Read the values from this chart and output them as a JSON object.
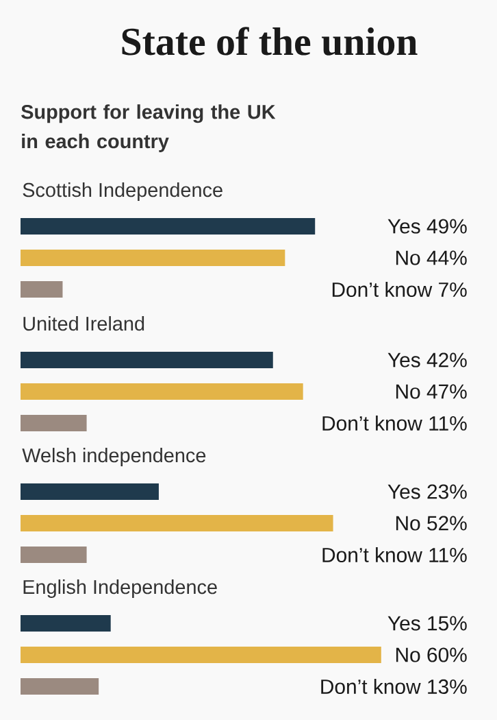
{
  "chart_data": [
    {
      "type": "bar",
      "orientation": "horizontal",
      "title": "State of the union",
      "subtitle": "Support for leaving the UK in each country",
      "xlabel": "Scottish Independence",
      "categories": [
        null,
        null,
        null
      ],
      "values": [
        49,
        44,
        7
      ],
      "value_labels": [
        "Yes 49%",
        "No 44%",
        "Don’t know 7%"
      ],
      "colors": [
        "#1f3a4d",
        "#e3b448",
        "#9b8a80"
      ]
    },
    {
      "type": "bar",
      "orientation": "horizontal",
      "xlabel": "United Ireland",
      "categories": [
        null,
        null,
        null
      ],
      "values": [
        42,
        47,
        11
      ],
      "value_labels": [
        "Yes 42%",
        "No 47%",
        "Don’t know 11%"
      ],
      "colors": [
        "#1f3a4d",
        "#e3b448",
        "#9b8a80"
      ]
    },
    {
      "type": "bar",
      "orientation": "horizontal",
      "xlabel": "Welsh independence",
      "categories": [
        null,
        null,
        null
      ],
      "values": [
        23,
        52,
        11
      ],
      "value_labels": [
        "Yes 23%",
        "No 52%",
        "Don’t know 11%"
      ],
      "colors": [
        "#1f3a4d",
        "#e3b448",
        "#9b8a80"
      ]
    },
    {
      "type": "bar",
      "orientation": "horizontal",
      "xlabel": "English Independence",
      "categories": [
        null,
        null,
        null
      ],
      "values": [
        15,
        60,
        13
      ],
      "value_labels": [
        "Yes 15%",
        "No 60%",
        "Don’t know 13%"
      ],
      "colors": [
        "#1f3a4d",
        "#e3b448",
        "#9b8a80"
      ]
    }
  ]
}
